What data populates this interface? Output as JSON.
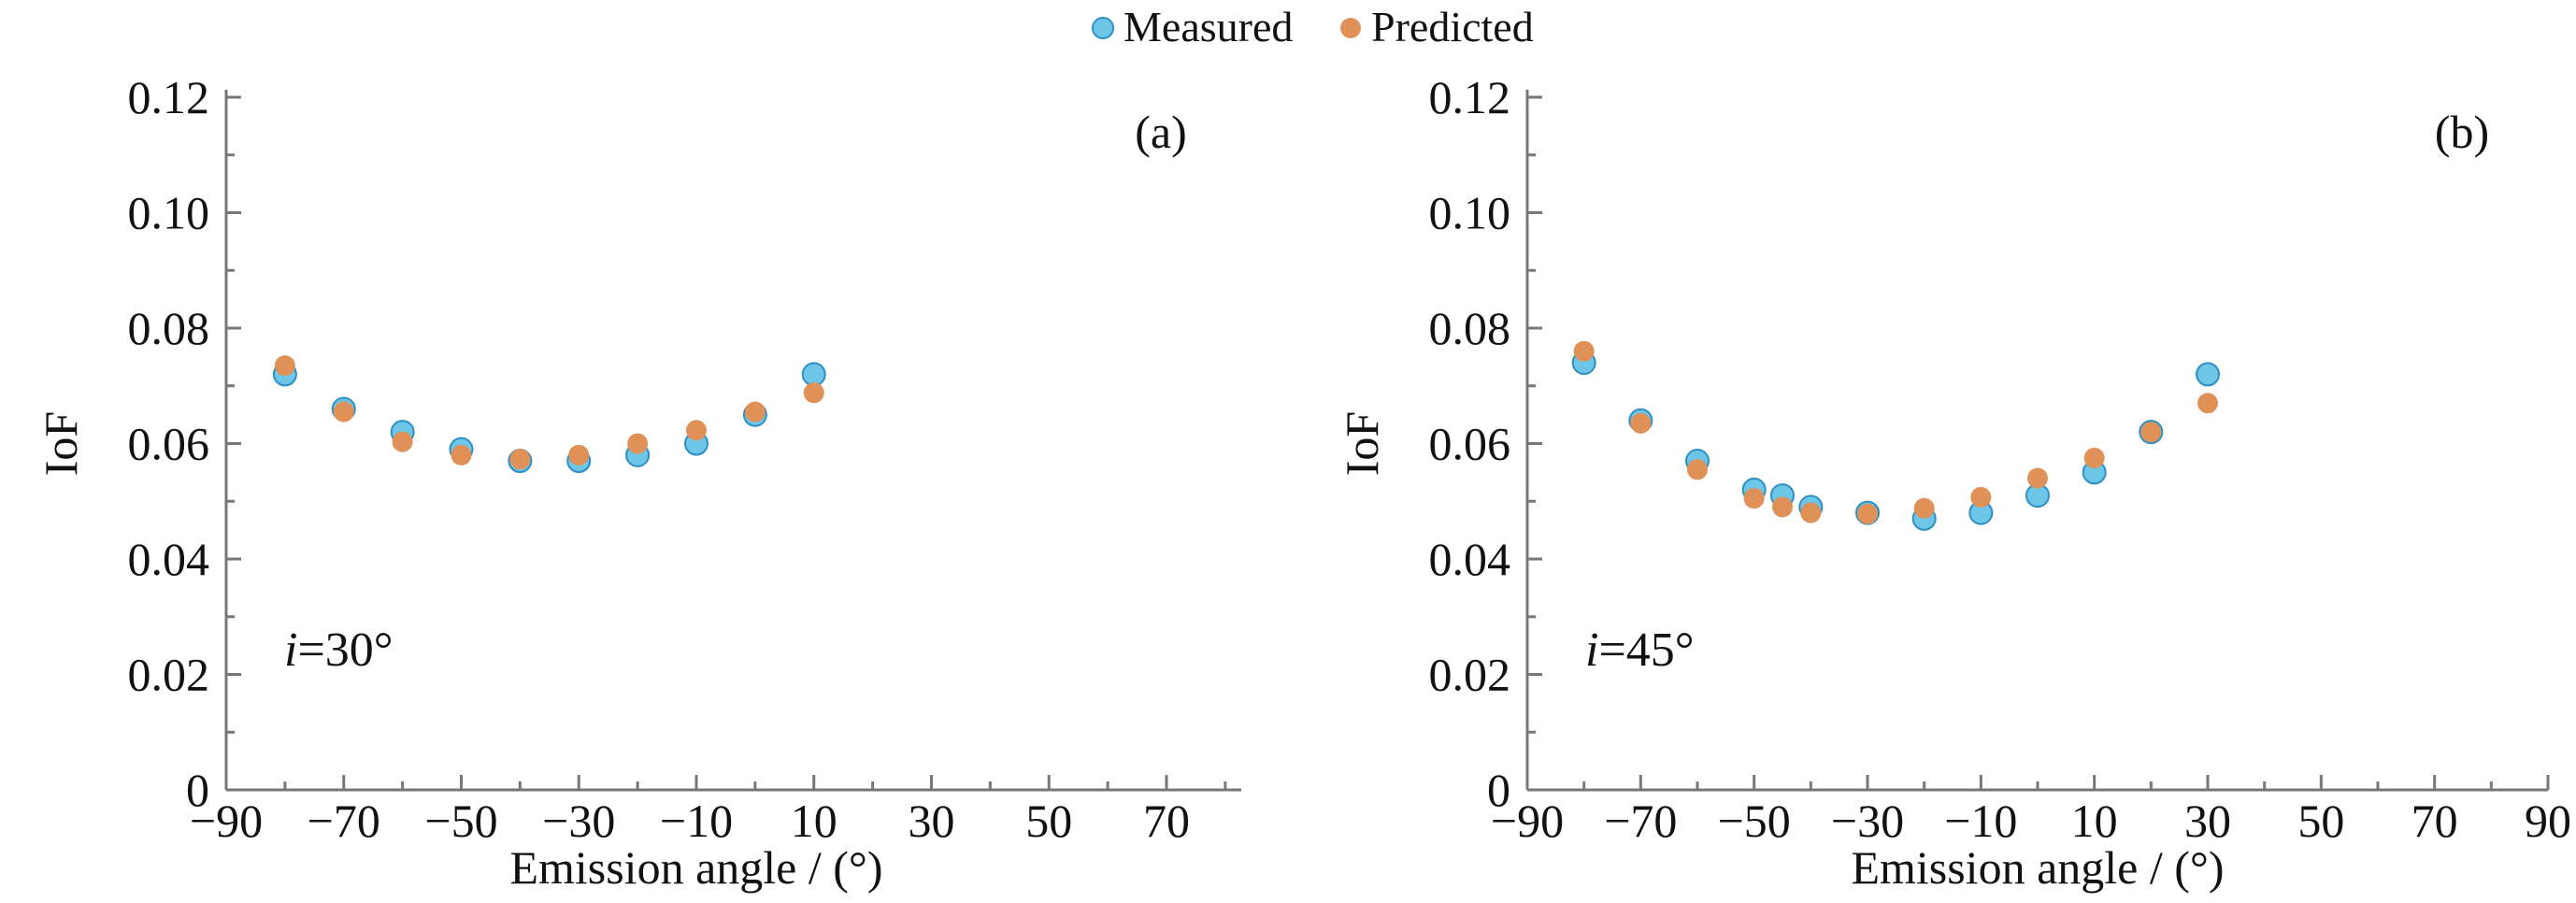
{
  "legend": {
    "measured": "Measured",
    "predicted": "Predicted"
  },
  "colors": {
    "measured": "#6ec6e6",
    "measured_edge": "#2f8fc4",
    "predicted": "#df9157",
    "axis": "#777777"
  },
  "chart_data": [
    {
      "type": "scatter",
      "panel_label": "(a)",
      "annotation_var": "i",
      "annotation": "=30°",
      "xlabel": "Emission angle / (°)",
      "ylabel": "IoF",
      "xlim": [
        -90,
        82
      ],
      "ylim": [
        0,
        0.12
      ],
      "xticks": [
        -90,
        -70,
        -50,
        -30,
        -10,
        10,
        30,
        50,
        70
      ],
      "xtick_labels": [
        "−90",
        "−70",
        "−50",
        "−30",
        "−10",
        "10",
        "30",
        "50",
        "70"
      ],
      "yticks": [
        0,
        0.02,
        0.04,
        0.06,
        0.08,
        0.1,
        0.12
      ],
      "ytick_labels": [
        "0",
        "0.02",
        "0.04",
        "0.06",
        "0.08",
        "0.10",
        "0.12"
      ],
      "grid": false,
      "legend_position": "top-center",
      "series": [
        {
          "name": "Measured",
          "x": [
            -80,
            -70,
            -60,
            -50,
            -40,
            -30,
            -20,
            -10,
            0,
            10
          ],
          "y": [
            0.072,
            0.066,
            0.062,
            0.059,
            0.057,
            0.057,
            0.058,
            0.06,
            0.065,
            0.072
          ]
        },
        {
          "name": "Predicted",
          "x": [
            -80,
            -70,
            -60,
            -50,
            -40,
            -30,
            -20,
            -10,
            0,
            10
          ],
          "y": [
            0.0735,
            0.0655,
            0.0603,
            0.058,
            0.0573,
            0.058,
            0.06,
            0.0623,
            0.0655,
            0.0688
          ]
        }
      ]
    },
    {
      "type": "scatter",
      "panel_label": "(b)",
      "annotation_var": "i",
      "annotation": "=45°",
      "xlabel": "Emission angle / (°)",
      "ylabel": "IoF",
      "xlim": [
        -90,
        90
      ],
      "ylim": [
        0,
        0.12
      ],
      "xticks": [
        -90,
        -70,
        -50,
        -30,
        -10,
        10,
        30,
        50,
        70,
        90
      ],
      "xtick_labels": [
        "−90",
        "−70",
        "−50",
        "−30",
        "−10",
        "10",
        "30",
        "50",
        "70",
        "90"
      ],
      "yticks": [
        0,
        0.02,
        0.04,
        0.06,
        0.08,
        0.1,
        0.12
      ],
      "ytick_labels": [
        "0",
        "0.02",
        "0.04",
        "0.06",
        "0.08",
        "0.10",
        "0.12"
      ],
      "grid": false,
      "legend_position": "top-center",
      "series": [
        {
          "name": "Measured",
          "x": [
            -80,
            -70,
            -60,
            -50,
            -45,
            -40,
            -30,
            -20,
            -10,
            0,
            10,
            20,
            30
          ],
          "y": [
            0.074,
            0.064,
            0.057,
            0.052,
            0.051,
            0.049,
            0.048,
            0.047,
            0.048,
            0.051,
            0.055,
            0.062,
            0.072
          ]
        },
        {
          "name": "Predicted",
          "x": [
            -80,
            -70,
            -60,
            -50,
            -45,
            -40,
            -30,
            -20,
            -10,
            0,
            10,
            20,
            30
          ],
          "y": [
            0.076,
            0.0635,
            0.0555,
            0.0505,
            0.049,
            0.048,
            0.0478,
            0.0488,
            0.0507,
            0.054,
            0.0575,
            0.062,
            0.067
          ]
        }
      ]
    }
  ]
}
